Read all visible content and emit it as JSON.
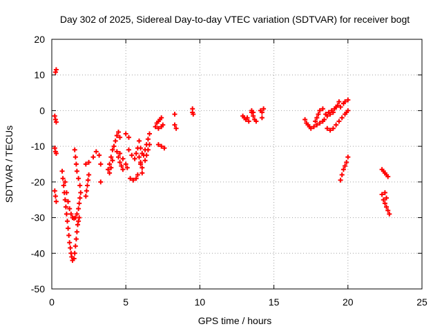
{
  "chart_data": {
    "type": "scatter",
    "title": "Day 302 of 2025, Sidereal Day-to-day VTEC variation (SDTVAR) for receiver bogt",
    "xlabel": "GPS time / hours",
    "ylabel": "SDTVAR / TECUs",
    "xlim": [
      0,
      25
    ],
    "ylim": [
      -50,
      20
    ],
    "xticks": [
      0,
      5,
      10,
      15,
      20,
      25
    ],
    "yticks": [
      -50,
      -40,
      -30,
      -20,
      -10,
      0,
      10,
      20
    ],
    "grid": true,
    "marker": "+",
    "color": "#ff0000",
    "series": [
      {
        "points": [
          [
            0.3,
            11.5
          ],
          [
            0.25,
            10.8
          ],
          [
            0.2,
            -1.5
          ],
          [
            0.25,
            -2.5
          ],
          [
            0.3,
            -3.2
          ],
          [
            0.2,
            -10.5
          ],
          [
            0.25,
            -11.5
          ],
          [
            0.3,
            -12.0
          ],
          [
            0.2,
            -22.5
          ],
          [
            0.25,
            -24.0
          ],
          [
            0.3,
            -25.5
          ],
          [
            0.7,
            -17.0
          ],
          [
            0.75,
            -19.0
          ],
          [
            0.8,
            -21.0
          ],
          [
            0.85,
            -23.0
          ],
          [
            0.9,
            -25.0
          ],
          [
            0.95,
            -27.0
          ],
          [
            1.0,
            -29.0
          ],
          [
            1.05,
            -31.0
          ],
          [
            1.1,
            -33.0
          ],
          [
            1.15,
            -35.0
          ],
          [
            1.2,
            -37.0
          ],
          [
            1.25,
            -38.5
          ],
          [
            1.3,
            -40.0
          ],
          [
            1.35,
            -41.0
          ],
          [
            1.4,
            -42.0
          ],
          [
            1.5,
            -41.5
          ],
          [
            1.55,
            -40.0
          ],
          [
            1.6,
            -38.0
          ],
          [
            1.65,
            -36.0
          ],
          [
            1.7,
            -34.0
          ],
          [
            1.75,
            -32.0
          ],
          [
            1.8,
            -31.0
          ],
          [
            1.85,
            -30.0
          ],
          [
            0.9,
            -20.0
          ],
          [
            1.0,
            -23.0
          ],
          [
            1.1,
            -25.5
          ],
          [
            1.2,
            -27.5
          ],
          [
            1.3,
            -29.0
          ],
          [
            1.4,
            -30.0
          ],
          [
            1.5,
            -30.2
          ],
          [
            1.6,
            -30.0
          ],
          [
            1.7,
            -29.0
          ],
          [
            1.8,
            -27.5
          ],
          [
            1.85,
            -26.0
          ],
          [
            1.9,
            -24.5
          ],
          [
            1.95,
            -23.0
          ],
          [
            1.9,
            -21.0
          ],
          [
            1.8,
            -19.0
          ],
          [
            1.7,
            -17.0
          ],
          [
            1.65,
            -15.0
          ],
          [
            1.6,
            -13.0
          ],
          [
            1.55,
            -11.0
          ],
          [
            2.3,
            -24.0
          ],
          [
            2.35,
            -22.5
          ],
          [
            2.4,
            -21.0
          ],
          [
            2.45,
            -19.5
          ],
          [
            2.5,
            -18.0
          ],
          [
            2.3,
            -15.0
          ],
          [
            2.5,
            -14.5
          ],
          [
            2.8,
            -13.0
          ],
          [
            3.0,
            -11.5
          ],
          [
            3.2,
            -12.5
          ],
          [
            3.3,
            -15.0
          ],
          [
            3.3,
            -20.0
          ],
          [
            3.8,
            -16.5
          ],
          [
            3.9,
            -15.0
          ],
          [
            4.0,
            -13.0
          ],
          [
            4.1,
            -11.0
          ],
          [
            4.2,
            -10.0
          ],
          [
            3.9,
            -17.5
          ],
          [
            4.0,
            -16.0
          ],
          [
            4.1,
            -14.0
          ],
          [
            4.3,
            -8.5
          ],
          [
            4.4,
            -7.0
          ],
          [
            4.5,
            -6.0
          ],
          [
            4.6,
            -7.5
          ],
          [
            4.4,
            -11.5
          ],
          [
            4.5,
            -13.0
          ],
          [
            4.6,
            -14.5
          ],
          [
            4.7,
            -15.5
          ],
          [
            4.8,
            -16.5
          ],
          [
            4.6,
            -12.0
          ],
          [
            4.8,
            -13.5
          ],
          [
            5.0,
            -15.0
          ],
          [
            5.1,
            -16.0
          ],
          [
            5.0,
            -6.5
          ],
          [
            5.2,
            -7.5
          ],
          [
            5.2,
            -11.0
          ],
          [
            5.4,
            -12.5
          ],
          [
            5.6,
            -13.5
          ],
          [
            5.7,
            -12.0
          ],
          [
            5.8,
            -10.5
          ],
          [
            5.3,
            -19.0
          ],
          [
            5.5,
            -19.5
          ],
          [
            5.7,
            -19.0
          ],
          [
            5.8,
            -18.0
          ],
          [
            5.9,
            -8.5
          ],
          [
            6.0,
            -10.5
          ],
          [
            6.1,
            -12.0
          ],
          [
            6.0,
            -14.5
          ],
          [
            6.1,
            -16.0
          ],
          [
            6.2,
            -12.5
          ],
          [
            6.3,
            -11.0
          ],
          [
            6.4,
            -9.5
          ],
          [
            6.5,
            -8.0
          ],
          [
            6.6,
            -6.5
          ],
          [
            6.3,
            -14.0
          ],
          [
            6.4,
            -12.5
          ],
          [
            6.5,
            -11.0
          ],
          [
            6.6,
            -9.5
          ],
          [
            5.9,
            -13.0
          ],
          [
            6.0,
            -15.0
          ],
          [
            6.1,
            -17.5
          ],
          [
            7.0,
            -4.5
          ],
          [
            7.1,
            -3.5
          ],
          [
            7.2,
            -3.0
          ],
          [
            7.3,
            -2.5
          ],
          [
            7.4,
            -2.0
          ],
          [
            7.2,
            -5.0
          ],
          [
            7.4,
            -4.5
          ],
          [
            7.5,
            -4.0
          ],
          [
            7.2,
            -9.5
          ],
          [
            7.4,
            -10.0
          ],
          [
            7.6,
            -10.5
          ],
          [
            8.3,
            -1.0
          ],
          [
            8.3,
            -4.0
          ],
          [
            8.4,
            -5.0
          ],
          [
            9.5,
            0.5
          ],
          [
            9.5,
            -0.5
          ],
          [
            9.55,
            -1.0
          ],
          [
            12.9,
            -1.5
          ],
          [
            13.0,
            -2.0
          ],
          [
            13.1,
            -2.5
          ],
          [
            13.2,
            -2.0
          ],
          [
            13.3,
            -3.0
          ],
          [
            13.5,
            -0.5
          ],
          [
            13.6,
            -1.5
          ],
          [
            13.7,
            -2.5
          ],
          [
            13.8,
            -3.0
          ],
          [
            13.5,
            0.0
          ],
          [
            13.6,
            -0.5
          ],
          [
            14.1,
            0.0
          ],
          [
            14.2,
            -0.5
          ],
          [
            14.3,
            0.5
          ],
          [
            14.2,
            -2.0
          ],
          [
            17.1,
            -2.5
          ],
          [
            17.2,
            -3.5
          ],
          [
            17.3,
            -4.0
          ],
          [
            17.4,
            -4.5
          ],
          [
            17.5,
            -5.0
          ],
          [
            17.7,
            -4.5
          ],
          [
            17.9,
            -4.0
          ],
          [
            18.1,
            -3.5
          ],
          [
            18.3,
            -3.0
          ],
          [
            17.8,
            -3.0
          ],
          [
            17.9,
            -2.0
          ],
          [
            18.0,
            -1.0
          ],
          [
            18.1,
            0.0
          ],
          [
            18.3,
            0.5
          ],
          [
            18.5,
            -1.0
          ],
          [
            18.7,
            -0.5
          ],
          [
            18.9,
            0.0
          ],
          [
            19.1,
            0.5
          ],
          [
            19.3,
            1.5
          ],
          [
            19.4,
            2.5
          ],
          [
            18.4,
            -2.5
          ],
          [
            18.6,
            -1.5
          ],
          [
            18.8,
            -1.0
          ],
          [
            19.0,
            -0.5
          ],
          [
            19.2,
            1.0
          ],
          [
            18.6,
            -5.0
          ],
          [
            18.8,
            -5.5
          ],
          [
            19.0,
            -5.0
          ],
          [
            19.2,
            -4.0
          ],
          [
            19.4,
            -3.0
          ],
          [
            19.6,
            -2.0
          ],
          [
            19.8,
            -1.0
          ],
          [
            19.9,
            -0.5
          ],
          [
            20.0,
            0.0
          ],
          [
            19.5,
            1.0
          ],
          [
            19.7,
            2.0
          ],
          [
            19.8,
            2.5
          ],
          [
            20.0,
            3.0
          ],
          [
            19.5,
            -19.5
          ],
          [
            19.6,
            -18.0
          ],
          [
            19.7,
            -16.5
          ],
          [
            19.8,
            -15.5
          ],
          [
            19.9,
            -14.5
          ],
          [
            20.0,
            -13.0
          ],
          [
            22.3,
            -16.5
          ],
          [
            22.4,
            -17.0
          ],
          [
            22.5,
            -17.5
          ],
          [
            22.6,
            -18.0
          ],
          [
            22.7,
            -18.5
          ],
          [
            22.3,
            -23.5
          ],
          [
            22.4,
            -25.0
          ],
          [
            22.5,
            -26.0
          ],
          [
            22.6,
            -27.0
          ],
          [
            22.7,
            -28.0
          ],
          [
            22.8,
            -29.0
          ],
          [
            22.5,
            -23.0
          ],
          [
            22.6,
            -24.5
          ]
        ]
      }
    ]
  }
}
